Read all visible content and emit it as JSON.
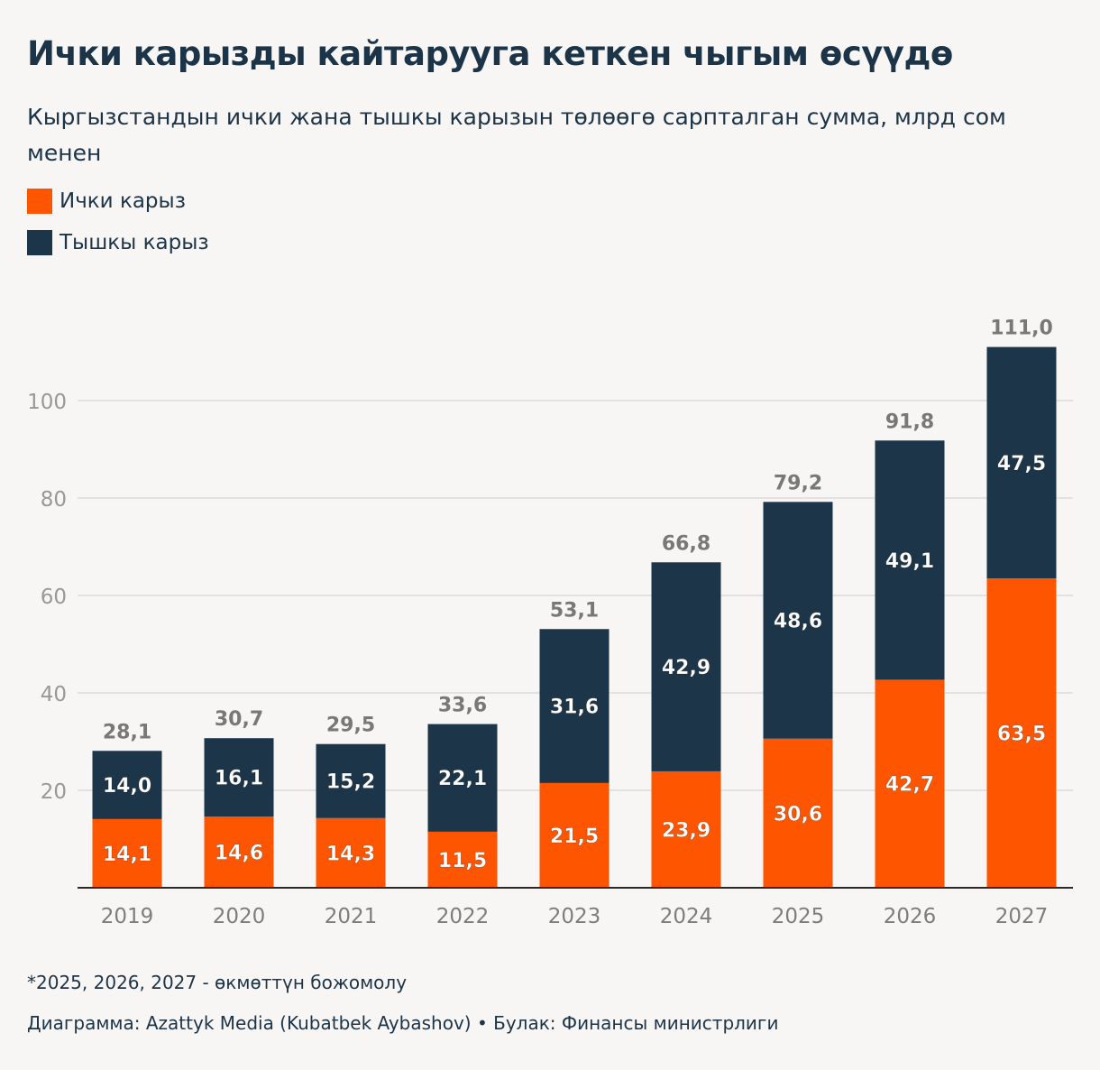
{
  "title": "Ички карызды кайтарууга кеткен чыгым өсүүдө",
  "subtitle": "Кыргызстандын ички жана тышкы карызын төлөөгө сарпталган сумма, млрд сом менен",
  "legend": [
    {
      "label": "Ички карыз",
      "color": "#fe5500"
    },
    {
      "label": "Тышкы карыз",
      "color": "#1c3549"
    }
  ],
  "chart_data": {
    "type": "bar",
    "stacked": true,
    "categories": [
      "2019",
      "2020",
      "2021",
      "2022",
      "2023",
      "2024",
      "2025",
      "2026",
      "2027"
    ],
    "series": [
      {
        "name": "Ички карыз",
        "color": "#fe5500",
        "values": [
          14.1,
          14.6,
          14.3,
          11.5,
          21.5,
          23.9,
          30.6,
          42.7,
          63.5
        ],
        "labels": [
          "14,1",
          "14,6",
          "14,3",
          "11,5",
          "21,5",
          "23,9",
          "30,6",
          "42,7",
          "63,5"
        ]
      },
      {
        "name": "Тышкы карыз",
        "color": "#1c3549",
        "values": [
          14.0,
          16.1,
          15.2,
          22.1,
          31.6,
          42.9,
          48.6,
          49.1,
          47.5
        ],
        "labels": [
          "14,0",
          "16,1",
          "15,2",
          "22,1",
          "31,6",
          "42,9",
          "48,6",
          "49,1",
          "47,5"
        ]
      }
    ],
    "totals": [
      28.1,
      30.7,
      29.5,
      33.6,
      53.1,
      66.8,
      79.2,
      91.8,
      111.0
    ],
    "total_labels": [
      "28,1",
      "30,7",
      "29,5",
      "33,6",
      "53,1",
      "66,8",
      "79,2",
      "91,8",
      "111,0"
    ],
    "yticks": [
      20,
      40,
      60,
      80,
      100
    ],
    "ylim": [
      0,
      111
    ],
    "xlabel": "",
    "ylabel": "",
    "grid": true
  },
  "footnote": "*2025, 2026, 2027 - өкмөттүн божомолу",
  "credit": "Диаграмма: Azattyk Media (Kubatbek Aybashov) • Булак: Финансы министрлиги"
}
